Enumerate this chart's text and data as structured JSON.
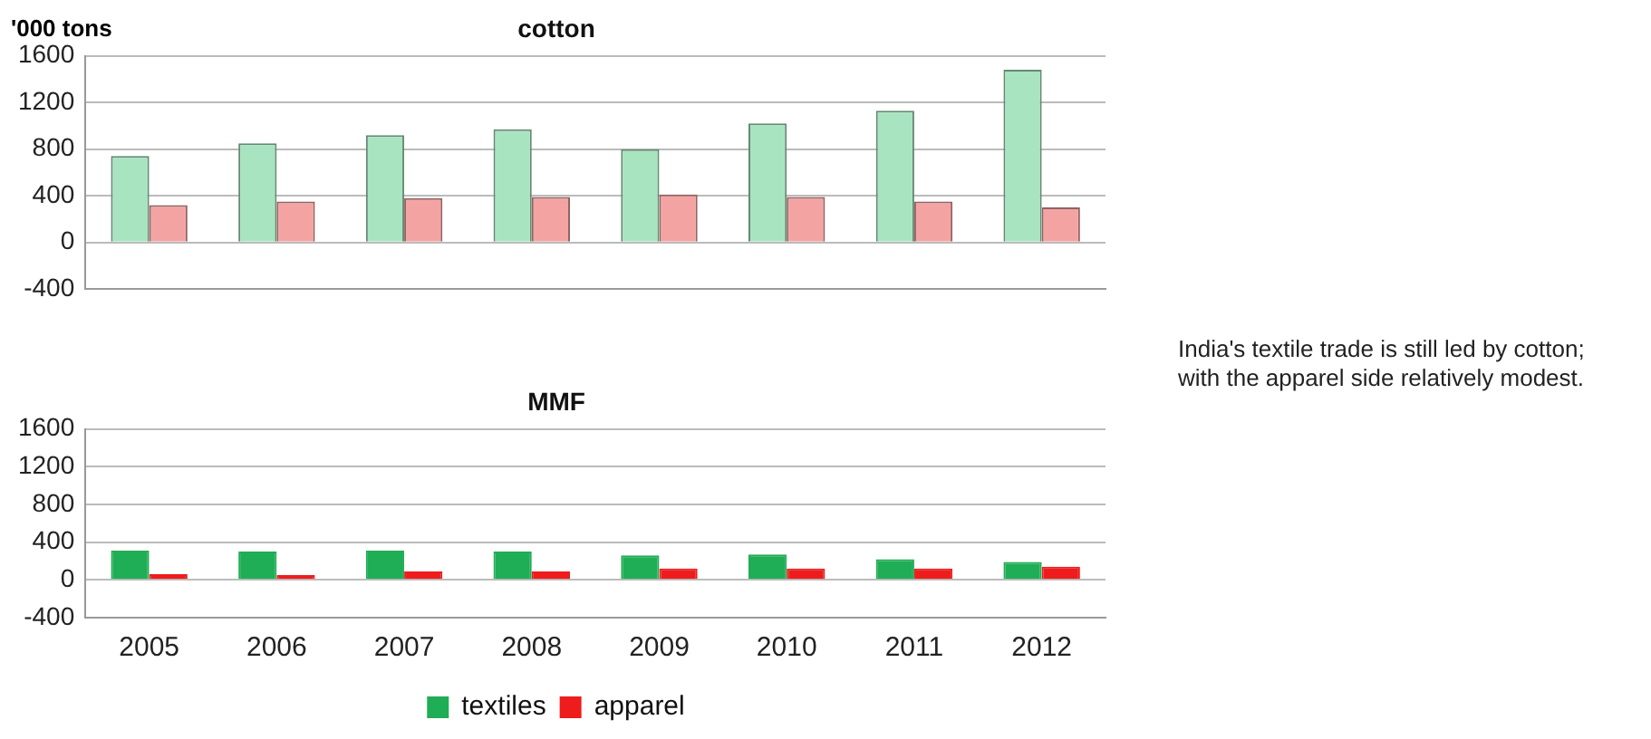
{
  "chart_data": [
    {
      "type": "bar",
      "title": "cotton",
      "ylabel": "'000 tons",
      "categories": [
        "2005",
        "2006",
        "2007",
        "2008",
        "2009",
        "2010",
        "2011",
        "2012"
      ],
      "series": [
        {
          "color": "#a8e4c0",
          "values": [
            740,
            850,
            920,
            970,
            800,
            1020,
            1130,
            1480
          ]
        },
        {
          "color": "#f4a3a3",
          "values": [
            320,
            350,
            380,
            390,
            410,
            390,
            350,
            300
          ]
        }
      ],
      "ylim": [
        -400,
        1600
      ],
      "yticks": [
        -400,
        0,
        400,
        800,
        1200,
        1600
      ],
      "grid": "y",
      "legend": false,
      "tick_labels": "y",
      "annotations": [
        "India's textile trade is still led by cotton; with the apparel side relatively modest."
      ]
    },
    {
      "type": "bar",
      "title": "MMF",
      "categories": [
        "2005",
        "2006",
        "2007",
        "2008",
        "2009",
        "2010",
        "2011",
        "2012"
      ],
      "series": [
        {
          "name": "textiles",
          "color": "#1fad55",
          "values": [
            310,
            300,
            310,
            300,
            260,
            270,
            220,
            190
          ]
        },
        {
          "name": "apparel",
          "color": "#ee1c1c",
          "values": [
            60,
            50,
            90,
            90,
            120,
            120,
            120,
            140
          ]
        }
      ],
      "ylim": [
        -400,
        1600
      ],
      "yticks": [
        -400,
        0,
        400,
        800,
        1200,
        1600
      ],
      "grid": "y",
      "legend": "bottom"
    }
  ]
}
